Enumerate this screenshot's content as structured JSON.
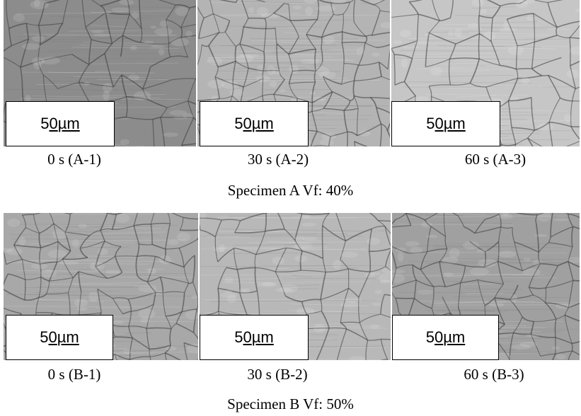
{
  "scale_bar_label_parts": [
    "5",
    "0",
    "µm"
  ],
  "rows": [
    {
      "title": "Specimen A Vf: 40%",
      "panels": [
        {
          "caption": "0 s (A-1)",
          "tone": "#8c8c8c"
        },
        {
          "caption": "30 s (A-2)",
          "tone": "#b4b4b4"
        },
        {
          "caption": "60 s (A-3)",
          "tone": "#c6c6c6"
        }
      ]
    },
    {
      "title": "Specimen B Vf: 50%",
      "panels": [
        {
          "caption": "0 s (B-1)",
          "tone": "#a8a8a8"
        },
        {
          "caption": "30 s (B-2)",
          "tone": "#b8b8b8"
        },
        {
          "caption": "60 s (B-3)",
          "tone": "#a0a0a0"
        }
      ]
    }
  ]
}
